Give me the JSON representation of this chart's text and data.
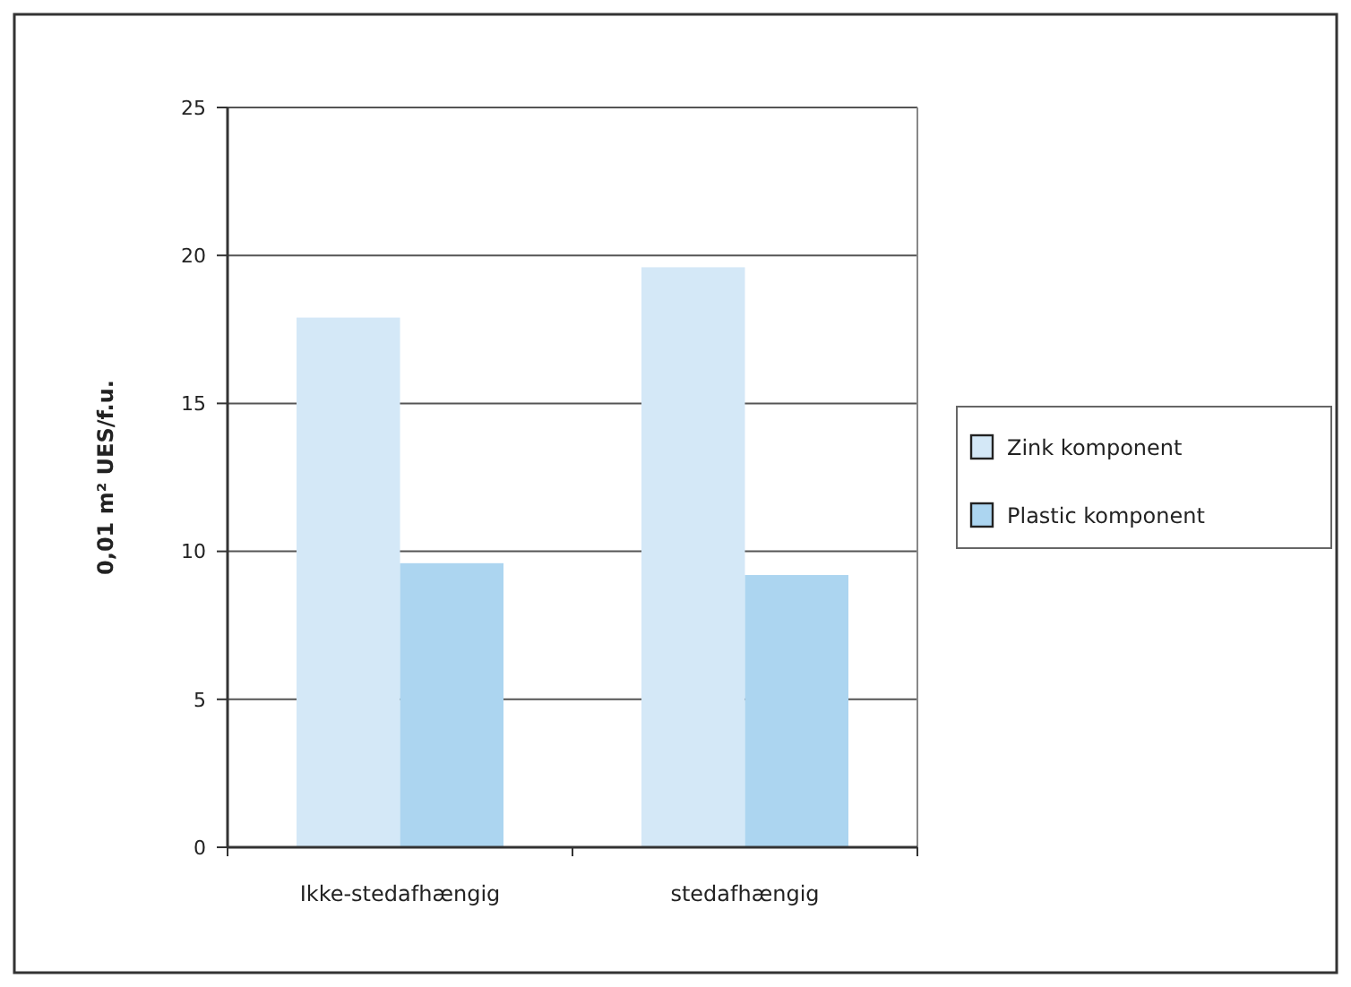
{
  "chart_data": {
    "type": "bar",
    "ylabel": "0,01 m² UES/f.u.",
    "categories": [
      "Ikke-stedafhængig",
      "stedafhængig"
    ],
    "series": [
      {
        "name": "Zink komponent",
        "color": "#d4e8f7",
        "values": [
          17.9,
          19.6
        ]
      },
      {
        "name": "Plastic komponent",
        "color": "#acd5f0",
        "values": [
          9.6,
          9.2
        ]
      }
    ],
    "ylim": [
      0,
      25
    ],
    "yticks": [
      0,
      5,
      10,
      15,
      20,
      25
    ],
    "grid": "y",
    "legend": "right"
  }
}
